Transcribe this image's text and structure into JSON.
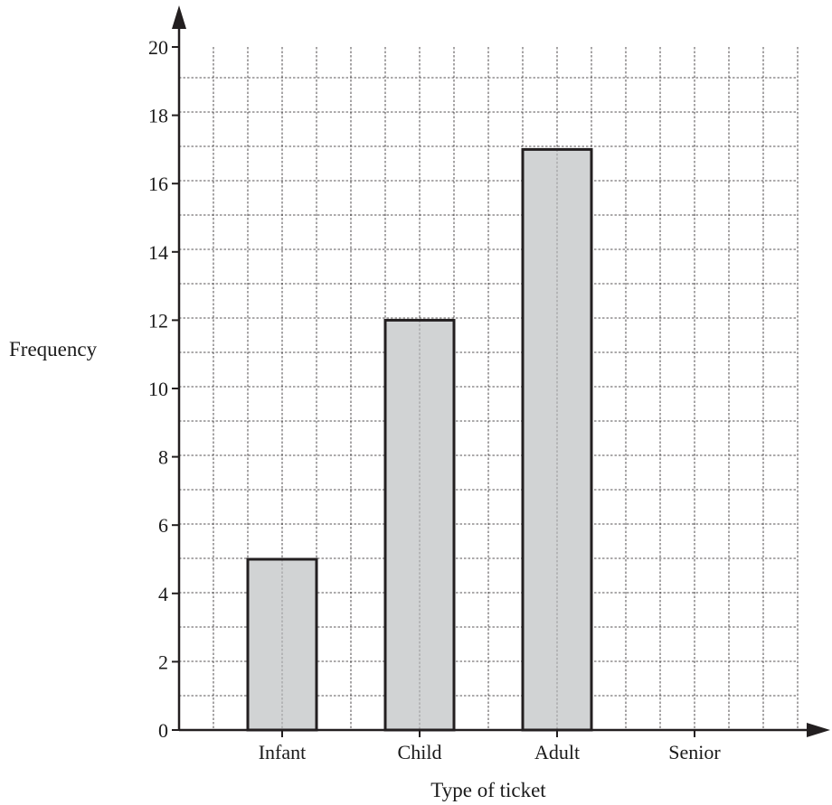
{
  "chart_data": {
    "type": "bar",
    "title": "",
    "xlabel": "Type of ticket",
    "ylabel": "Frequency",
    "categories": [
      "Infant",
      "Child",
      "Adult",
      "Senior"
    ],
    "values": [
      5,
      12,
      17,
      null
    ],
    "ylim": [
      0,
      20
    ],
    "y_ticks": [
      "0",
      "2",
      "4",
      "6",
      "8",
      "10",
      "12",
      "14",
      "16",
      "18",
      "20"
    ],
    "grid": true,
    "colors": {
      "bar_fill": "#d1d3d4",
      "bar_stroke": "#231f20",
      "axis": "#231f20",
      "grid": "#231f20"
    }
  }
}
